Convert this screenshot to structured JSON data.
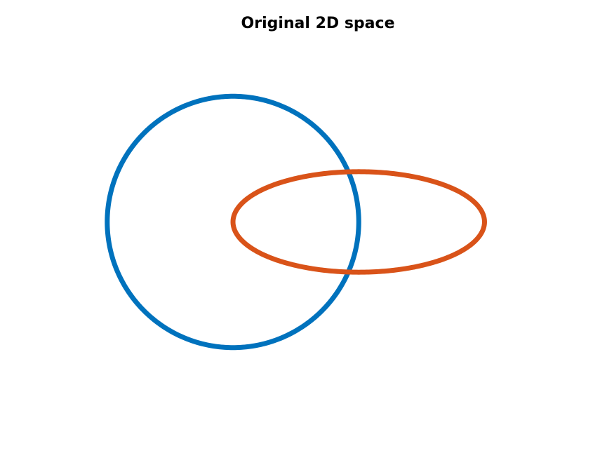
{
  "chart_data": {
    "type": "line",
    "title": "Original 2D space",
    "xlabel": "",
    "ylabel": "",
    "axes_visible": false,
    "grid": false,
    "aspect": "equal",
    "xlim": [
      -1.25,
      2.6
    ],
    "ylim": [
      -1.2,
      1.2
    ],
    "series": [
      {
        "shape": "circle",
        "center": [
          0,
          0
        ],
        "rx": 1,
        "ry": 1,
        "color": "#0072BD"
      },
      {
        "shape": "ellipse",
        "center": [
          1,
          0
        ],
        "rx": 1,
        "ry": 0.4,
        "color": "#D95319"
      }
    ]
  }
}
